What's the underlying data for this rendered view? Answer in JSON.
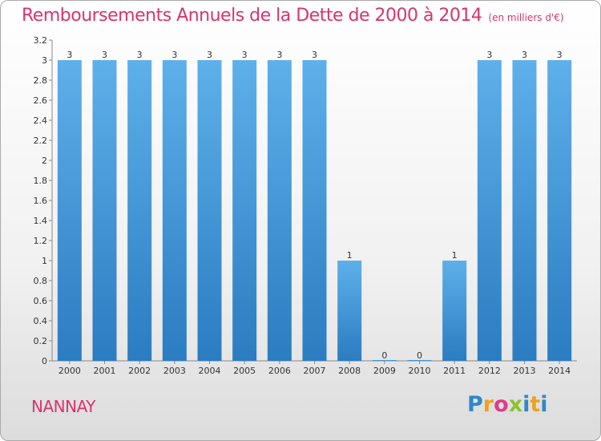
{
  "header": {
    "title": "Remboursements Annuels de la Dette de 2000 à 2014",
    "unit": "(en milliers d'€)"
  },
  "footer": {
    "commune": "NANNAY",
    "logo": "Proxiti"
  },
  "colors": {
    "title": "#d8346f",
    "bar_top": "#5eb0ea",
    "bar_bottom": "#2b7cc1"
  },
  "chart_data": {
    "type": "bar",
    "title": "Remboursements Annuels de la Dette de 2000 à 2014",
    "categories": [
      "2000",
      "2001",
      "2002",
      "2003",
      "2004",
      "2005",
      "2006",
      "2007",
      "2008",
      "2009",
      "2010",
      "2011",
      "2012",
      "2013",
      "2014"
    ],
    "values": [
      3,
      3,
      3,
      3,
      3,
      3,
      3,
      3,
      1,
      0,
      0,
      1,
      3,
      3,
      3
    ],
    "data_labels": [
      "3",
      "3",
      "3",
      "3",
      "3",
      "3",
      "3",
      "3",
      "1",
      "0",
      "0",
      "1",
      "3",
      "3",
      "3"
    ],
    "ylim": [
      0,
      3.2
    ],
    "yticks": [
      "0",
      "0.2",
      "0.4",
      "0.6",
      "0.8",
      "1",
      "1.2",
      "1.4",
      "1.6",
      "1.8",
      "2",
      "2.2",
      "2.4",
      "2.6",
      "2.8",
      "3",
      "3.2"
    ],
    "ytick_values": [
      0,
      0.2,
      0.4,
      0.6,
      0.8,
      1,
      1.2,
      1.4,
      1.6,
      1.8,
      2,
      2.2,
      2.4,
      2.6,
      2.8,
      3,
      3.2
    ],
    "grid": false
  }
}
